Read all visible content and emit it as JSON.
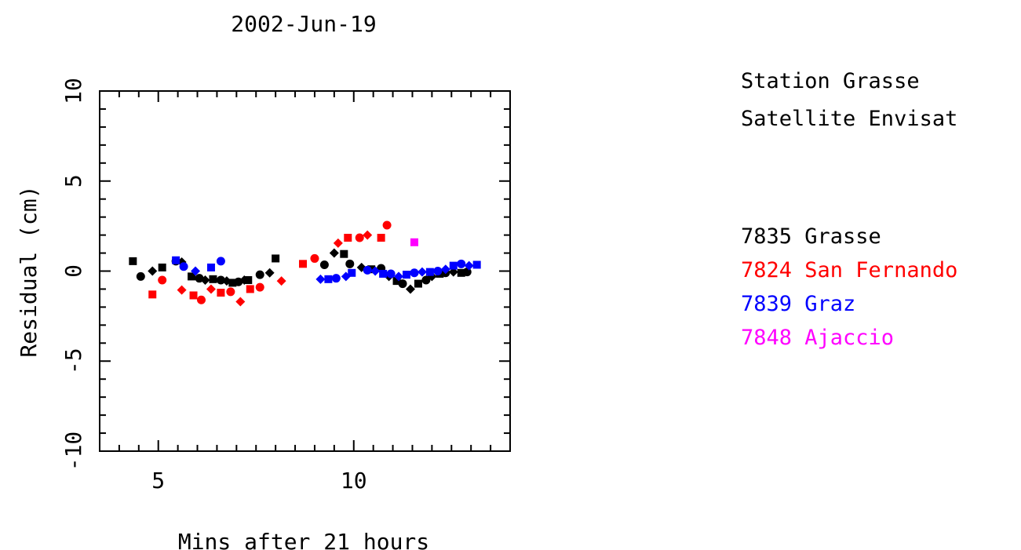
{
  "chart_data": {
    "type": "scatter",
    "title": "2002-Jun-19",
    "xlabel": "Mins after 21 hours",
    "ylabel": "Residual (cm)",
    "xlim": [
      3.5,
      14
    ],
    "ylim": [
      -10,
      10
    ],
    "xticks": [
      5,
      10
    ],
    "yticks": [
      -10,
      -5,
      0,
      5,
      10
    ],
    "grid": false,
    "legend_position": "right",
    "series": [
      {
        "name": "7835 Grasse",
        "color": "#000000",
        "points": [
          [
            4.35,
            0.55
          ],
          [
            4.55,
            -0.3
          ],
          [
            4.85,
            0.0
          ],
          [
            5.1,
            0.2
          ],
          [
            5.45,
            0.55
          ],
          [
            5.6,
            0.5
          ],
          [
            5.85,
            -0.3
          ],
          [
            6.05,
            -0.4
          ],
          [
            6.2,
            -0.5
          ],
          [
            6.4,
            -0.45
          ],
          [
            6.6,
            -0.5
          ],
          [
            6.75,
            -0.55
          ],
          [
            6.9,
            -0.65
          ],
          [
            7.05,
            -0.6
          ],
          [
            7.2,
            -0.5
          ],
          [
            7.3,
            -0.5
          ],
          [
            7.6,
            -0.2
          ],
          [
            7.85,
            -0.1
          ],
          [
            8.0,
            0.7
          ],
          [
            9.25,
            0.35
          ],
          [
            9.5,
            1.0
          ],
          [
            9.75,
            0.95
          ],
          [
            9.9,
            0.4
          ],
          [
            10.2,
            0.2
          ],
          [
            10.45,
            0.1
          ],
          [
            10.7,
            0.15
          ],
          [
            10.9,
            -0.3
          ],
          [
            11.1,
            -0.55
          ],
          [
            11.25,
            -0.7
          ],
          [
            11.45,
            -1.0
          ],
          [
            11.65,
            -0.7
          ],
          [
            11.85,
            -0.5
          ],
          [
            12.0,
            -0.3
          ],
          [
            12.2,
            -0.15
          ],
          [
            12.35,
            -0.1
          ],
          [
            12.55,
            -0.05
          ],
          [
            12.75,
            -0.1
          ],
          [
            12.9,
            -0.05
          ]
        ]
      },
      {
        "name": "7824 San Fernando",
        "color": "#ff0000",
        "points": [
          [
            4.85,
            -1.3
          ],
          [
            5.1,
            -0.5
          ],
          [
            5.6,
            -1.05
          ],
          [
            5.9,
            -1.35
          ],
          [
            6.1,
            -1.6
          ],
          [
            6.35,
            -1.0
          ],
          [
            6.6,
            -1.2
          ],
          [
            6.85,
            -1.15
          ],
          [
            7.1,
            -1.7
          ],
          [
            7.35,
            -1.0
          ],
          [
            7.6,
            -0.9
          ],
          [
            8.15,
            -0.55
          ],
          [
            8.7,
            0.4
          ],
          [
            9.0,
            0.7
          ],
          [
            9.6,
            1.55
          ],
          [
            9.85,
            1.85
          ],
          [
            10.15,
            1.85
          ],
          [
            10.35,
            2.0
          ],
          [
            10.7,
            1.85
          ],
          [
            10.85,
            2.55
          ]
        ]
      },
      {
        "name": "7839 Graz",
        "color": "#0000ff",
        "points": [
          [
            5.45,
            0.6
          ],
          [
            5.65,
            0.25
          ],
          [
            5.95,
            0.0
          ],
          [
            6.35,
            0.2
          ],
          [
            6.6,
            0.55
          ],
          [
            9.15,
            -0.45
          ],
          [
            9.35,
            -0.45
          ],
          [
            9.55,
            -0.4
          ],
          [
            9.8,
            -0.3
          ],
          [
            9.95,
            -0.1
          ],
          [
            10.35,
            0.05
          ],
          [
            10.55,
            0.0
          ],
          [
            10.75,
            -0.15
          ],
          [
            10.95,
            -0.15
          ],
          [
            11.15,
            -0.3
          ],
          [
            11.35,
            -0.2
          ],
          [
            11.55,
            -0.1
          ],
          [
            11.75,
            -0.05
          ],
          [
            11.95,
            -0.05
          ],
          [
            12.15,
            0.0
          ],
          [
            12.35,
            0.1
          ],
          [
            12.55,
            0.3
          ],
          [
            12.75,
            0.4
          ],
          [
            12.95,
            0.3
          ],
          [
            13.15,
            0.35
          ]
        ]
      },
      {
        "name": "7848 Ajaccio",
        "color": "#ff00ff",
        "points": [
          [
            11.55,
            1.6
          ]
        ]
      }
    ]
  },
  "info": {
    "station": "Station Grasse",
    "satellite": "Satellite Envisat"
  }
}
